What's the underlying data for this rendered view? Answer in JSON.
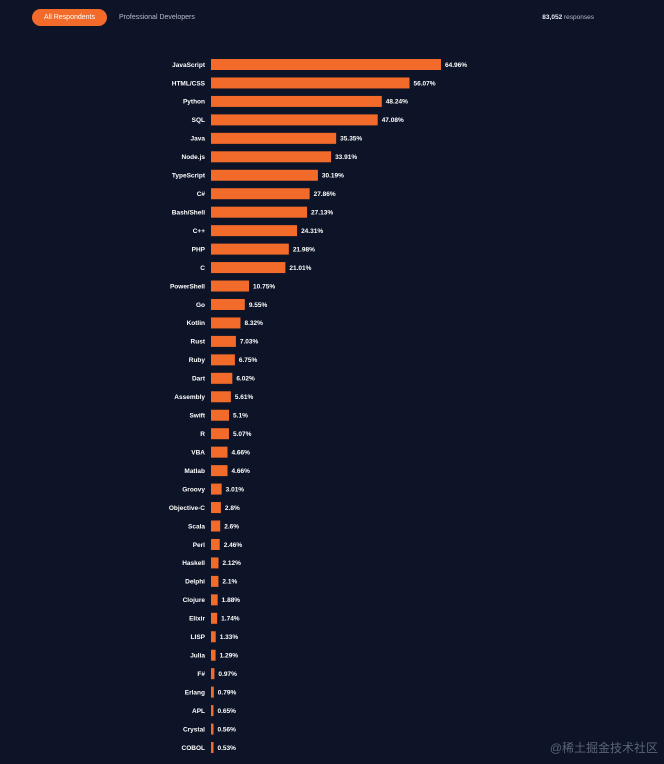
{
  "tabs": [
    {
      "label": "All Respondents",
      "active": true
    },
    {
      "label": "Professional Developers",
      "active": false
    }
  ],
  "responses": {
    "count": "83,052",
    "label": "responses"
  },
  "watermark": "@稀土掘金技术社区",
  "colors": {
    "bar": "#f26b2b",
    "background": "#0d1427"
  },
  "chart_data": {
    "type": "bar",
    "orientation": "horizontal",
    "title": "",
    "xlabel": "",
    "ylabel": "",
    "xlim": [
      0,
      100
    ],
    "categories": [
      "JavaScript",
      "HTML/CSS",
      "Python",
      "SQL",
      "Java",
      "Node.js",
      "TypeScript",
      "C#",
      "Bash/Shell",
      "C++",
      "PHP",
      "C",
      "PowerShell",
      "Go",
      "Kotlin",
      "Rust",
      "Ruby",
      "Dart",
      "Assembly",
      "Swift",
      "R",
      "VBA",
      "Matlab",
      "Groovy",
      "Objective-C",
      "Scala",
      "Perl",
      "Haskell",
      "Delphi",
      "Clojure",
      "Elixir",
      "LISP",
      "Julia",
      "F#",
      "Erlang",
      "APL",
      "Crystal",
      "COBOL"
    ],
    "values": [
      64.96,
      56.07,
      48.24,
      47.08,
      35.35,
      33.91,
      30.19,
      27.86,
      27.13,
      24.31,
      21.98,
      21.01,
      10.75,
      9.55,
      8.32,
      7.03,
      6.75,
      6.02,
      5.61,
      5.1,
      5.07,
      4.66,
      4.66,
      3.01,
      2.8,
      2.6,
      2.46,
      2.12,
      2.1,
      1.88,
      1.74,
      1.33,
      1.29,
      0.97,
      0.79,
      0.65,
      0.56,
      0.53
    ],
    "value_labels": [
      "64.96%",
      "56.07%",
      "48.24%",
      "47.08%",
      "35.35%",
      "33.91%",
      "30.19%",
      "27.86%",
      "27.13%",
      "24.31%",
      "21.98%",
      "21.01%",
      "10.75%",
      "9.55%",
      "8.32%",
      "7.03%",
      "6.75%",
      "6.02%",
      "5.61%",
      "5.1%",
      "5.07%",
      "4.66%",
      "4.66%",
      "3.01%",
      "2.8%",
      "2.6%",
      "2.46%",
      "2.12%",
      "2.1%",
      "1.88%",
      "1.74%",
      "1.33%",
      "1.29%",
      "0.97%",
      "0.79%",
      "0.65%",
      "0.56%",
      "0.53%"
    ]
  }
}
